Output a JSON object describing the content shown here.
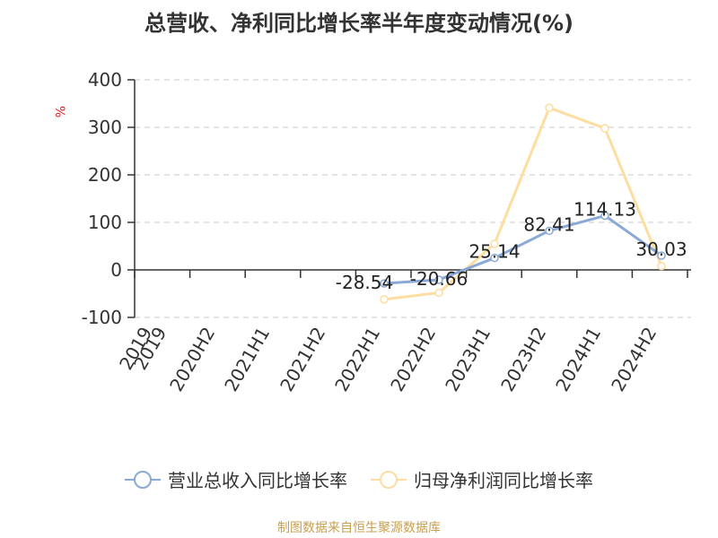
{
  "title": "总营收、净利同比增长率半年度变动情况(%)",
  "unit": "%",
  "source": "制图数据来自恒生聚源数据库",
  "colors": {
    "revenue": "#8aa9d6",
    "profit": "#fddda0",
    "grid": "#c8c8c8",
    "axis": "#333333"
  },
  "chart_data": {
    "type": "line",
    "categories": [
      "2019",
      "2019",
      "2020H2",
      "2021H1",
      "2021H2",
      "2022H1",
      "2022H2",
      "2023H1",
      "2023H2",
      "2024H1",
      "2024H2"
    ],
    "ylim": [
      -100,
      400
    ],
    "yticks": [
      -100,
      0,
      100,
      200,
      300,
      400
    ],
    "grid": true,
    "legend": "bottom",
    "series": [
      {
        "name": "营业总收入同比增长率",
        "values": [
          null,
          null,
          null,
          null,
          null,
          -28.54,
          -20.66,
          25.14,
          82.41,
          114.13,
          30.03
        ],
        "labels": [
          "",
          "",
          "",
          "",
          "",
          "-28.54",
          "-20.66",
          "25.14",
          "82.41",
          "114.13",
          "30.03"
        ]
      },
      {
        "name": "归母净利润同比增长率",
        "values": [
          null,
          null,
          null,
          null,
          null,
          -62,
          -48,
          55,
          341,
          298,
          8
        ]
      }
    ]
  }
}
